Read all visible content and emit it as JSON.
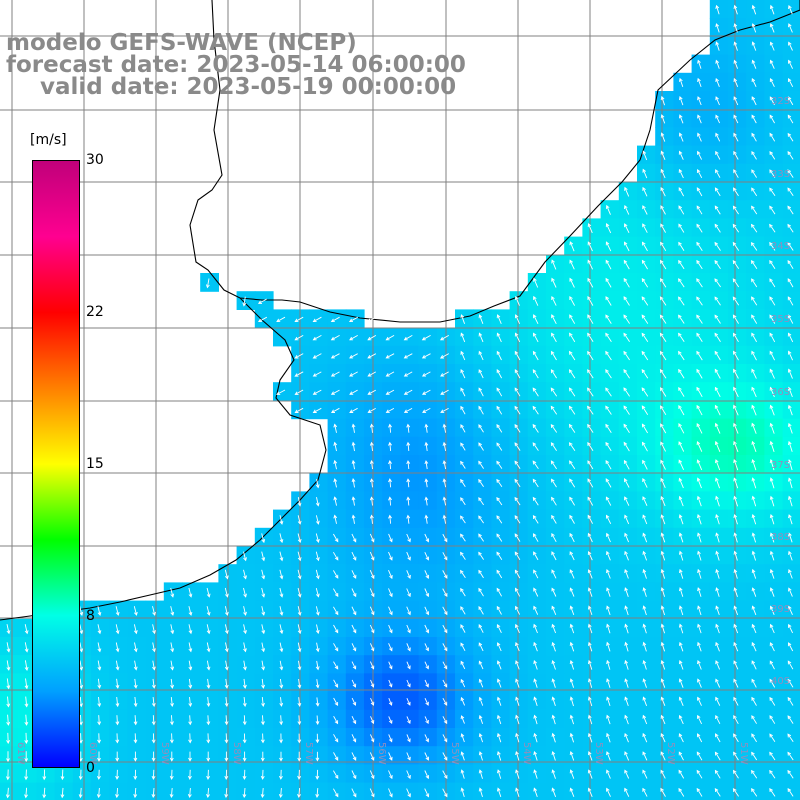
{
  "title": {
    "line1": "modelo GEFS-WAVE (NCEP)",
    "line2": "forecast date: 2023-05-14 06:00:00",
    "line3": "valid date: 2023-05-19 00:00:00"
  },
  "colorbar": {
    "unit": "[m/s]",
    "min": 0,
    "max": 30,
    "ticks": [
      "30",
      "22",
      "15",
      "8",
      "0"
    ],
    "colors": [
      "#0000ff",
      "#00a0ff",
      "#00ffe6",
      "#00ff00",
      "#ffff00",
      "#ff8000",
      "#ff0000",
      "#ff0090",
      "#c0007a"
    ]
  },
  "map": {
    "lat_labels": [
      "32S",
      "33S",
      "34S",
      "35S",
      "36S",
      "37S",
      "38S",
      "39S",
      "40S"
    ],
    "lon_labels": [
      "61W",
      "60W",
      "59W",
      "58W",
      "57W",
      "56W",
      "55W",
      "54W",
      "53W",
      "52W",
      "51W"
    ],
    "land_color": "#ffffff",
    "coast_color": "#000000",
    "grid_color": "#808080",
    "arrow_color": "#ffffff"
  }
}
